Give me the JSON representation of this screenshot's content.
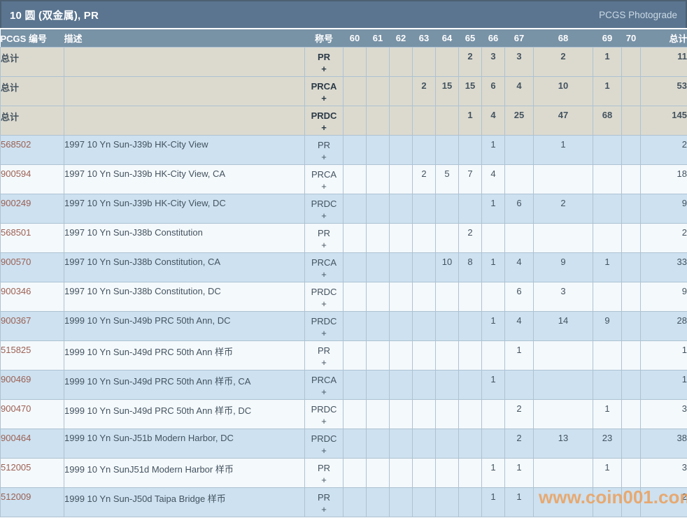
{
  "header": {
    "title": "10 圆 (双金属), PR",
    "link": "PCGS Photograde"
  },
  "watermark": "www.coin001.com",
  "colors": {
    "title_bar": "#5b7590",
    "header_row": "#7892a6",
    "total_row_bg": "#dcdacf",
    "zebra_blue": "#cde1f0",
    "zebra_white": "#f4f9fc",
    "pcgs_link": "#9c6053",
    "watermark": "#eba05e"
  },
  "table": {
    "columns": [
      "PCGS 编号",
      "描述",
      "称号",
      "60",
      "61",
      "62",
      "63",
      "64",
      "65",
      "66",
      "67",
      "68",
      "69",
      "70",
      "总计"
    ],
    "rows": [
      {
        "type": "total",
        "id": "总计",
        "desc": "",
        "designation": "PR",
        "plus": "+",
        "grades": [
          "",
          "",
          "",
          "",
          "",
          "2",
          "3",
          "3",
          "2",
          "1",
          ""
        ],
        "total": "11"
      },
      {
        "type": "total",
        "id": "总计",
        "desc": "",
        "designation": "PRCA",
        "plus": "+",
        "grades": [
          "",
          "",
          "",
          "2",
          "15",
          "15",
          "6",
          "4",
          "10",
          "1",
          ""
        ],
        "total": "53"
      },
      {
        "type": "total",
        "id": "总计",
        "desc": "",
        "designation": "PRDC",
        "plus": "+",
        "grades": [
          "",
          "",
          "",
          "",
          "",
          "1",
          "4",
          "25",
          "47",
          "68",
          ""
        ],
        "total": "145"
      },
      {
        "type": "data",
        "id": "568502",
        "desc": "1997 10 Yn Sun-J39b HK-City View",
        "designation": "PR",
        "plus": "+",
        "grades": [
          "",
          "",
          "",
          "",
          "",
          "",
          "1",
          "",
          "1",
          "",
          ""
        ],
        "total": "2"
      },
      {
        "type": "data",
        "id": "900594",
        "desc": "1997 10 Yn Sun-J39b HK-City View, CA",
        "designation": "PRCA",
        "plus": "+",
        "grades": [
          "",
          "",
          "",
          "2",
          "5",
          "7",
          "4",
          "",
          "",
          "",
          ""
        ],
        "total": "18"
      },
      {
        "type": "data",
        "id": "900249",
        "desc": "1997 10 Yn Sun-J39b HK-City View, DC",
        "designation": "PRDC",
        "plus": "+",
        "grades": [
          "",
          "",
          "",
          "",
          "",
          "",
          "1",
          "6",
          "2",
          "",
          ""
        ],
        "total": "9"
      },
      {
        "type": "data",
        "id": "568501",
        "desc": "1997 10 Yn Sun-J38b Constitution",
        "designation": "PR",
        "plus": "+",
        "grades": [
          "",
          "",
          "",
          "",
          "",
          "2",
          "",
          "",
          "",
          "",
          ""
        ],
        "total": "2"
      },
      {
        "type": "data",
        "id": "900570",
        "desc": "1997 10 Yn Sun-J38b Constitution, CA",
        "designation": "PRCA",
        "plus": "+",
        "grades": [
          "",
          "",
          "",
          "",
          "10",
          "8",
          "1",
          "4",
          "9",
          "1",
          ""
        ],
        "total": "33"
      },
      {
        "type": "data",
        "id": "900346",
        "desc": "1997 10 Yn Sun-J38b Constitution, DC",
        "designation": "PRDC",
        "plus": "+",
        "grades": [
          "",
          "",
          "",
          "",
          "",
          "",
          "",
          "6",
          "3",
          "",
          ""
        ],
        "total": "9"
      },
      {
        "type": "data",
        "id": "900367",
        "desc": "1999 10 Yn Sun-J49b PRC 50th Ann, DC",
        "designation": "PRDC",
        "plus": "+",
        "grades": [
          "",
          "",
          "",
          "",
          "",
          "",
          "1",
          "4",
          "14",
          "9",
          ""
        ],
        "total": "28"
      },
      {
        "type": "data",
        "id": "515825",
        "desc": "1999 10 Yn Sun-J49d PRC 50th Ann 样币",
        "designation": "PR",
        "plus": "+",
        "grades": [
          "",
          "",
          "",
          "",
          "",
          "",
          "",
          "1",
          "",
          "",
          ""
        ],
        "total": "1"
      },
      {
        "type": "data",
        "id": "900469",
        "desc": "1999 10 Yn Sun-J49d PRC 50th Ann 样币, CA",
        "designation": "PRCA",
        "plus": "+",
        "grades": [
          "",
          "",
          "",
          "",
          "",
          "",
          "1",
          "",
          "",
          "",
          ""
        ],
        "total": "1"
      },
      {
        "type": "data",
        "id": "900470",
        "desc": "1999 10 Yn Sun-J49d PRC 50th Ann 样币, DC",
        "designation": "PRDC",
        "plus": "+",
        "grades": [
          "",
          "",
          "",
          "",
          "",
          "",
          "",
          "2",
          "",
          "1",
          ""
        ],
        "total": "3"
      },
      {
        "type": "data",
        "id": "900464",
        "desc": "1999 10 Yn Sun-J51b Modern Harbor, DC",
        "designation": "PRDC",
        "plus": "+",
        "grades": [
          "",
          "",
          "",
          "",
          "",
          "",
          "",
          "2",
          "13",
          "23",
          ""
        ],
        "total": "38"
      },
      {
        "type": "data",
        "id": "512005",
        "desc": "1999 10 Yn SunJ51d Modern Harbor 样币",
        "designation": "PR",
        "plus": "+",
        "grades": [
          "",
          "",
          "",
          "",
          "",
          "",
          "1",
          "1",
          "",
          "1",
          ""
        ],
        "total": "3"
      },
      {
        "type": "data",
        "id": "512009",
        "desc": "1999 10 Yn Sun-J50d Taipa Bridge 样币",
        "designation": "PR",
        "plus": "+",
        "grades": [
          "",
          "",
          "",
          "",
          "",
          "",
          "1",
          "1",
          "",
          "",
          ""
        ],
        "total": "2"
      }
    ]
  }
}
